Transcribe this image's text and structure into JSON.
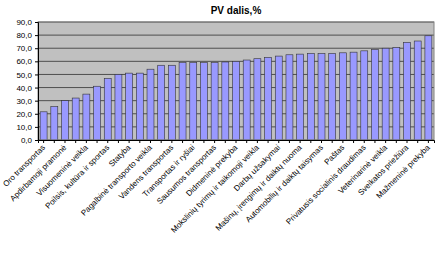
{
  "chart_data": {
    "type": "bar",
    "title": "PV dalis,%",
    "categories": [
      "Oro transportas",
      null,
      "Apdirbamoji pramonė",
      null,
      "Visuomeninė veikla",
      null,
      "Poilsis, kultūra ir sportas",
      null,
      "Statyba",
      null,
      "Pagalbinė transporto veikla",
      null,
      "Vandens transportas",
      null,
      "Transportas ir ryšiai",
      null,
      "Sausumos transportas",
      null,
      "Didmeninė prekyba",
      null,
      "Mokslinių tyrimų ir taikomoji veikla",
      null,
      "Darbų užsakymai",
      null,
      "Mašinų, įrengimų ir daiktų nuoma",
      null,
      "Automobilių ir daiktų taisymas",
      null,
      "Paštas",
      null,
      "Privatusis socialinis draudimas",
      null,
      "Veterinarinė veikla",
      null,
      "Sveikatos priežiūra",
      null,
      "Mažmeninė prekyba"
    ],
    "values": [
      21.5,
      25.5,
      30,
      32,
      35,
      41,
      47,
      50,
      51,
      51,
      54,
      57,
      57,
      59,
      59,
      59,
      59,
      59.5,
      60,
      61,
      62,
      63,
      64,
      65,
      65.5,
      66,
      66,
      66,
      66.5,
      67,
      68,
      69,
      70,
      70.5,
      74.5,
      75.5,
      79.5
    ],
    "color": "#9999ff",
    "ylim": [
      0,
      90
    ],
    "yticks": [
      {
        "value": 0,
        "label": "0,0"
      },
      {
        "value": 10,
        "label": "10,0"
      },
      {
        "value": 20,
        "label": "20,0"
      },
      {
        "value": 30,
        "label": "30,0"
      },
      {
        "value": 40,
        "label": "40,0"
      },
      {
        "value": 50,
        "label": "50,0"
      },
      {
        "value": 60,
        "label": "60,0"
      },
      {
        "value": 70,
        "label": "70,0"
      },
      {
        "value": 80,
        "label": "80,0"
      },
      {
        "value": 90,
        "label": "90,0"
      }
    ],
    "grid": true
  }
}
